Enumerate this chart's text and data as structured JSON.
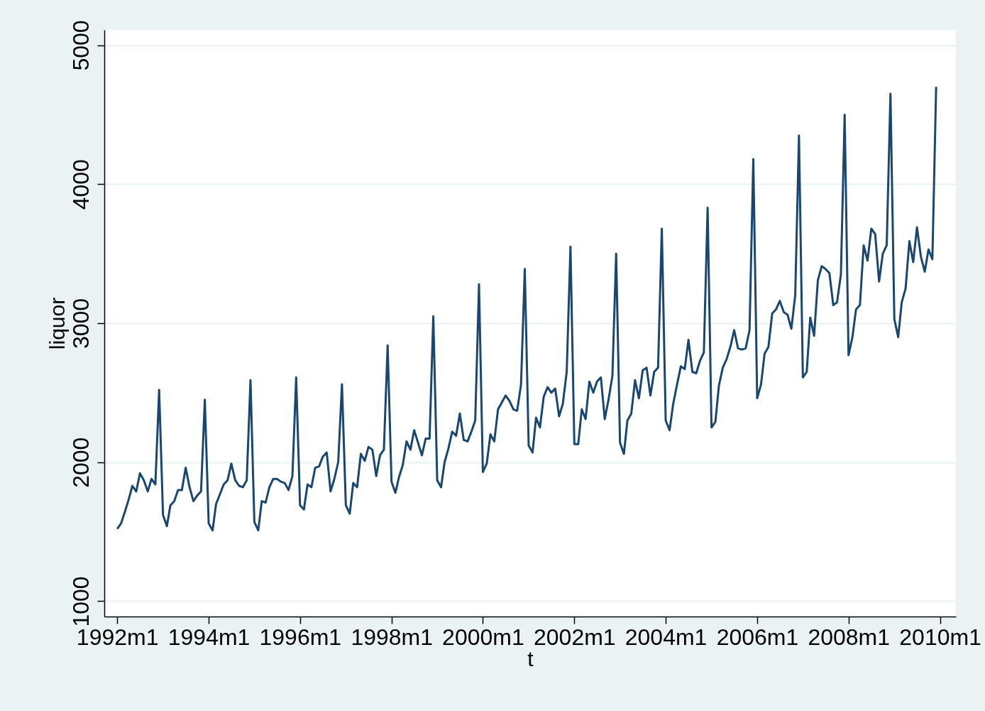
{
  "chart_data": {
    "type": "line",
    "xlabel": "t",
    "ylabel": "liquor",
    "x": [
      "1992-01",
      "1992-02",
      "1992-03",
      "1992-04",
      "1992-05",
      "1992-06",
      "1992-07",
      "1992-08",
      "1992-09",
      "1992-10",
      "1992-11",
      "1992-12",
      "1993-01",
      "1993-02",
      "1993-03",
      "1993-04",
      "1993-05",
      "1993-06",
      "1993-07",
      "1993-08",
      "1993-09",
      "1993-10",
      "1993-11",
      "1993-12",
      "1994-01",
      "1994-02",
      "1994-03",
      "1994-04",
      "1994-05",
      "1994-06",
      "1994-07",
      "1994-08",
      "1994-09",
      "1994-10",
      "1994-11",
      "1994-12",
      "1995-01",
      "1995-02",
      "1995-03",
      "1995-04",
      "1995-05",
      "1995-06",
      "1995-07",
      "1995-08",
      "1995-09",
      "1995-10",
      "1995-11",
      "1995-12",
      "1996-01",
      "1996-02",
      "1996-03",
      "1996-04",
      "1996-05",
      "1996-06",
      "1996-07",
      "1996-08",
      "1996-09",
      "1996-10",
      "1996-11",
      "1996-12",
      "1997-01",
      "1997-02",
      "1997-03",
      "1997-04",
      "1997-05",
      "1997-06",
      "1997-07",
      "1997-08",
      "1997-09",
      "1997-10",
      "1997-11",
      "1997-12",
      "1998-01",
      "1998-02",
      "1998-03",
      "1998-04",
      "1998-05",
      "1998-06",
      "1998-07",
      "1998-08",
      "1998-09",
      "1998-10",
      "1998-11",
      "1998-12",
      "1999-01",
      "1999-02",
      "1999-03",
      "1999-04",
      "1999-05",
      "1999-06",
      "1999-07",
      "1999-08",
      "1999-09",
      "1999-10",
      "1999-11",
      "1999-12",
      "2000-01",
      "2000-02",
      "2000-03",
      "2000-04",
      "2000-05",
      "2000-06",
      "2000-07",
      "2000-08",
      "2000-09",
      "2000-10",
      "2000-11",
      "2000-12",
      "2001-01",
      "2001-02",
      "2001-03",
      "2001-04",
      "2001-05",
      "2001-06",
      "2001-07",
      "2001-08",
      "2001-09",
      "2001-10",
      "2001-11",
      "2001-12",
      "2002-01",
      "2002-02",
      "2002-03",
      "2002-04",
      "2002-05",
      "2002-06",
      "2002-07",
      "2002-08",
      "2002-09",
      "2002-10",
      "2002-11",
      "2002-12",
      "2003-01",
      "2003-02",
      "2003-03",
      "2003-04",
      "2003-05",
      "2003-06",
      "2003-07",
      "2003-08",
      "2003-09",
      "2003-10",
      "2003-11",
      "2003-12",
      "2004-01",
      "2004-02",
      "2004-03",
      "2004-04",
      "2004-05",
      "2004-06",
      "2004-07",
      "2004-08",
      "2004-09",
      "2004-10",
      "2004-11",
      "2004-12",
      "2005-01",
      "2005-02",
      "2005-03",
      "2005-04",
      "2005-05",
      "2005-06",
      "2005-07",
      "2005-08",
      "2005-09",
      "2005-10",
      "2005-11",
      "2005-12",
      "2006-01",
      "2006-02",
      "2006-03",
      "2006-04",
      "2006-05",
      "2006-06",
      "2006-07",
      "2006-08",
      "2006-09",
      "2006-10",
      "2006-11",
      "2006-12",
      "2007-01",
      "2007-02",
      "2007-03",
      "2007-04",
      "2007-05",
      "2007-06",
      "2007-07",
      "2007-08",
      "2007-09",
      "2007-10",
      "2007-11",
      "2007-12",
      "2008-01",
      "2008-02",
      "2008-03",
      "2008-04",
      "2008-05",
      "2008-06",
      "2008-07",
      "2008-08",
      "2008-09",
      "2008-10",
      "2008-11",
      "2008-12",
      "2009-01",
      "2009-02",
      "2009-03",
      "2009-04",
      "2009-05",
      "2009-06",
      "2009-07",
      "2009-08",
      "2009-09",
      "2009-10",
      "2009-11",
      "2009-12"
    ],
    "series": [
      {
        "color": "#1a476f",
        "values": [
          1520,
          1560,
          1640,
          1730,
          1830,
          1790,
          1920,
          1870,
          1790,
          1880,
          1840,
          2520,
          1620,
          1540,
          1690,
          1720,
          1800,
          1800,
          1960,
          1820,
          1720,
          1760,
          1790,
          2450,
          1560,
          1510,
          1700,
          1770,
          1840,
          1870,
          1990,
          1870,
          1830,
          1820,
          1870,
          2590,
          1570,
          1510,
          1720,
          1710,
          1820,
          1880,
          1880,
          1860,
          1850,
          1800,
          1900,
          2610,
          1690,
          1660,
          1840,
          1820,
          1960,
          1970,
          2040,
          2070,
          1790,
          1880,
          2000,
          2560,
          1690,
          1630,
          1850,
          1820,
          2060,
          2010,
          2110,
          2090,
          1900,
          2050,
          2090,
          2840,
          1860,
          1780,
          1890,
          1980,
          2150,
          2090,
          2230,
          2140,
          2050,
          2170,
          2170,
          3050,
          1870,
          1820,
          2000,
          2100,
          2220,
          2190,
          2350,
          2160,
          2150,
          2220,
          2300,
          3280,
          1930,
          1990,
          2200,
          2150,
          2380,
          2430,
          2480,
          2440,
          2380,
          2370,
          2560,
          3390,
          2120,
          2070,
          2320,
          2250,
          2470,
          2540,
          2500,
          2530,
          2330,
          2420,
          2650,
          3550,
          2130,
          2130,
          2380,
          2310,
          2580,
          2500,
          2580,
          2610,
          2310,
          2450,
          2620,
          3500,
          2140,
          2060,
          2300,
          2350,
          2590,
          2460,
          2660,
          2680,
          2480,
          2650,
          2680,
          3680,
          2300,
          2230,
          2420,
          2560,
          2690,
          2670,
          2880,
          2650,
          2640,
          2730,
          2790,
          3830,
          2250,
          2290,
          2550,
          2680,
          2740,
          2830,
          2950,
          2820,
          2810,
          2820,
          2950,
          4180,
          2460,
          2560,
          2780,
          2830,
          3070,
          3100,
          3160,
          3080,
          3060,
          2960,
          3200,
          4350,
          2610,
          2650,
          3040,
          2910,
          3310,
          3410,
          3390,
          3360,
          3130,
          3150,
          3350,
          4500,
          2770,
          2900,
          3100,
          3130,
          3560,
          3450,
          3680,
          3640,
          3300,
          3500,
          3560,
          4650,
          3030,
          2900,
          3150,
          3250,
          3590,
          3440,
          3690,
          3480,
          3370,
          3530,
          3460,
          4700
        ]
      }
    ],
    "xlim": [
      "1991-09-20",
      "2010-05-08"
    ],
    "xticks": [
      {
        "value": "1992-01",
        "label": "1992m1"
      },
      {
        "value": "1994-01",
        "label": "1994m1"
      },
      {
        "value": "1996-01",
        "label": "1996m1"
      },
      {
        "value": "1998-01",
        "label": "1998m1"
      },
      {
        "value": "2000-01",
        "label": "2000m1"
      },
      {
        "value": "2002-01",
        "label": "2002m1"
      },
      {
        "value": "2004-01",
        "label": "2004m1"
      },
      {
        "value": "2006-01",
        "label": "2006m1"
      },
      {
        "value": "2008-01",
        "label": "2008m1"
      },
      {
        "value": "2010-01",
        "label": "2010m1"
      }
    ],
    "ylim": [
      890,
      5110
    ],
    "yticks": [
      1000,
      2000,
      3000,
      4000,
      5000
    ],
    "grid": "y",
    "marker": "none",
    "line_style": "solid"
  }
}
